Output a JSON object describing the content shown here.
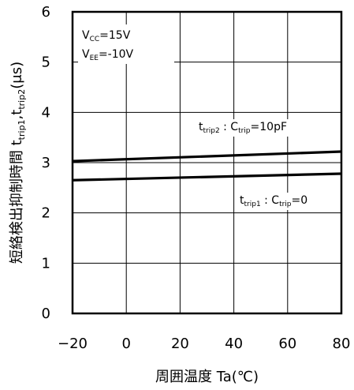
{
  "chart_data": {
    "type": "line",
    "xlabel": "周囲温度 Ta(℃)",
    "ylabel_main": "短絡検出抑制時間 t",
    "ylabel_sub1": "trip1",
    "ylabel_sep": ",t",
    "ylabel_sub2": "trip2",
    "ylabel_unit": "(μs)",
    "xlim": [
      -20,
      80
    ],
    "ylim": [
      0,
      6
    ],
    "x_ticks": [
      "-20",
      "0",
      "20",
      "40",
      "60",
      "80"
    ],
    "y_ticks": [
      "0",
      "1",
      "2",
      "3",
      "4",
      "5",
      "6"
    ],
    "grid": true,
    "conditions": {
      "vcc": {
        "main": "V",
        "sub": "CC",
        "rest": "=15V"
      },
      "vee": {
        "main": "V",
        "sub": "EE",
        "rest": "=-10V"
      }
    },
    "series": [
      {
        "name": "ttrip2 : Ctrip=10pF",
        "label": {
          "t": "t",
          "t_sub": "trip2",
          "mid": " : C",
          "c_sub": "trip",
          "rest": "=10pF"
        },
        "x": [
          -20,
          80
        ],
        "y": [
          3.03,
          3.22
        ]
      },
      {
        "name": "ttrip1 : Ctrip=0",
        "label": {
          "t": "t",
          "t_sub": "trip1",
          "mid": " : C",
          "c_sub": "trip",
          "rest": "=0"
        },
        "x": [
          -20,
          80
        ],
        "y": [
          2.65,
          2.78
        ]
      }
    ]
  }
}
